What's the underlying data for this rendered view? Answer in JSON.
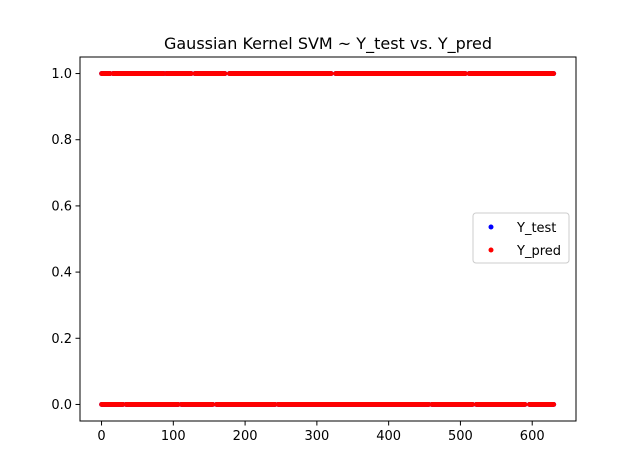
{
  "chart_data": {
    "type": "scatter",
    "title": "Gaussian Kernel SVM ~ Y_test vs. Y_pred",
    "xlabel": "",
    "ylabel": "",
    "xlim": [
      -30,
      661
    ],
    "ylim": [
      -0.05,
      1.05
    ],
    "x_ticks": [
      0,
      100,
      200,
      300,
      400,
      500,
      600
    ],
    "x_tick_labels": [
      "0",
      "100",
      "200",
      "300",
      "400",
      "500",
      "600"
    ],
    "y_ticks": [
      0.0,
      0.2,
      0.4,
      0.6,
      0.8,
      1.0
    ],
    "y_tick_labels": [
      "0.0",
      "0.2",
      "0.4",
      "0.6",
      "0.8",
      "1.0"
    ],
    "grid": false,
    "legend_position": "center-right",
    "n_points": 631,
    "series": [
      {
        "name": "Y_test",
        "color": "#0000ff",
        "marker": "point",
        "values_description": "binary labels, 0 or 1, for index 0..630"
      },
      {
        "name": "Y_pred",
        "color": "#ff0000",
        "marker": "point",
        "values_description": "binary predictions, 0 or 1, for index 0..630 (drawn on top of Y_test)"
      }
    ],
    "y1_segments": [
      [
        0,
        12
      ],
      [
        16,
        87
      ],
      [
        90,
        125
      ],
      [
        130,
        172
      ],
      [
        178,
        320
      ],
      [
        326,
        507
      ],
      [
        512,
        630
      ]
    ],
    "y0_segments": [
      [
        0,
        30
      ],
      [
        34,
        107
      ],
      [
        111,
        155
      ],
      [
        160,
        242
      ],
      [
        246,
        456
      ],
      [
        460,
        517
      ],
      [
        522,
        590
      ],
      [
        596,
        630
      ]
    ]
  }
}
